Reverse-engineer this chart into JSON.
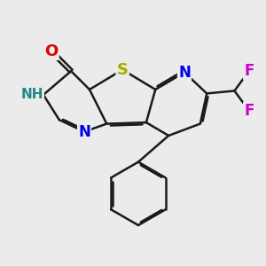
{
  "bg_color": "#ebebeb",
  "bond_color": "#1a1a1a",
  "bond_width": 1.8,
  "dbo": 0.055,
  "atom_colors": {
    "O": "#dd0000",
    "S": "#aaaa00",
    "N": "#0000ee",
    "NH": "#228888",
    "F": "#cc00cc"
  },
  "font_size": 11,
  "figsize": [
    3.0,
    3.0
  ],
  "dpi": 100
}
